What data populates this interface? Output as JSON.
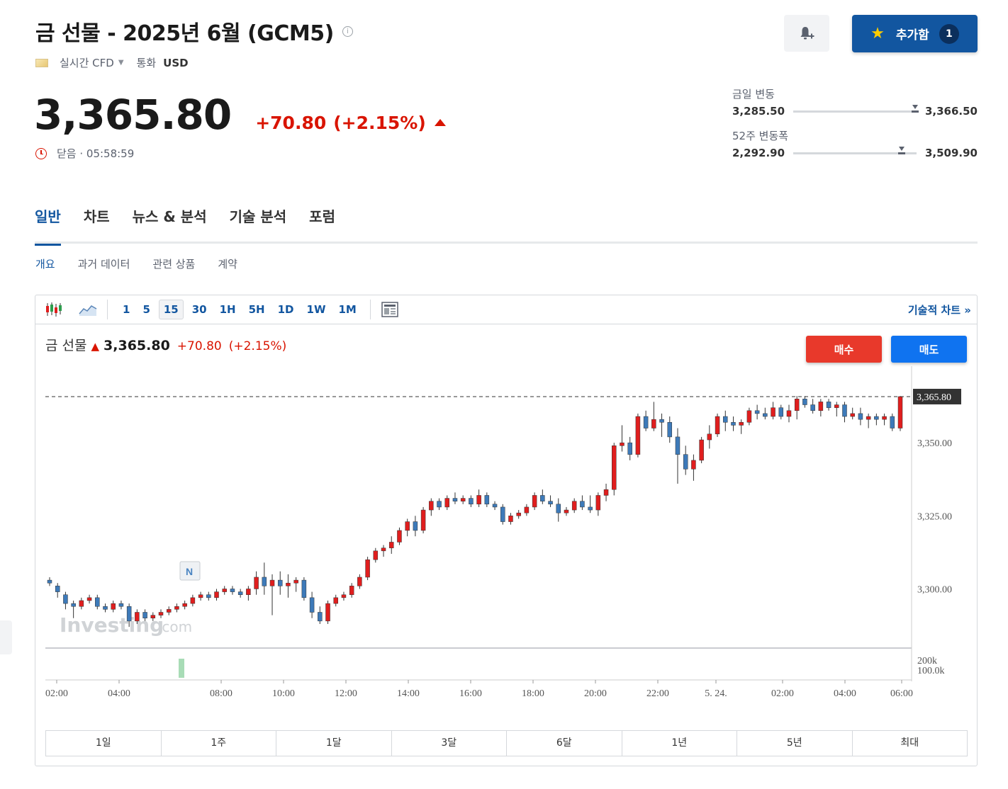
{
  "header": {
    "title": "금 선물 - 2025년 6월 (GCM5)",
    "info_symbol": "i",
    "market_type": "실시간 CFD",
    "currency_label": "통화",
    "currency": "USD"
  },
  "quote": {
    "price": "3,365.80",
    "change": "+70.80",
    "change_pct": "(+2.15%)",
    "status": "닫음 · 05:58:59"
  },
  "actions": {
    "watchlist_label": "추가함",
    "watchlist_count": "1"
  },
  "ranges": {
    "day": {
      "label": "금일 변동",
      "low": "3,285.50",
      "high": "3,366.50",
      "position": 0.99
    },
    "week52": {
      "label": "52주 변동폭",
      "low": "2,292.90",
      "high": "3,509.90",
      "position": 0.88
    }
  },
  "tabs": [
    {
      "label": "일반",
      "active": true
    },
    {
      "label": "차트",
      "active": false
    },
    {
      "label": "뉴스 & 분석",
      "active": false
    },
    {
      "label": "기술 분석",
      "active": false
    },
    {
      "label": "포럼",
      "active": false
    }
  ],
  "subtabs": [
    {
      "label": "개요",
      "active": true
    },
    {
      "label": "과거 데이터",
      "active": false
    },
    {
      "label": "관련 상품",
      "active": false
    },
    {
      "label": "계약",
      "active": false
    }
  ],
  "toolbar": {
    "timeframes": [
      "1",
      "5",
      "15",
      "30",
      "1H",
      "5H",
      "1D",
      "1W",
      "1M"
    ],
    "active_timeframe": "15",
    "advanced_link": "기술적 차트 »"
  },
  "chart_header": {
    "name": "금 선물",
    "price": "3,365.80",
    "change": "+70.80",
    "change_pct": "(+2.15%)",
    "buy_label": "매수",
    "sell_label": "매도",
    "marker_label": "N",
    "watermark": "Investing",
    "watermark_suffix": ".com"
  },
  "chart_data": {
    "type": "candlestick",
    "interval": "15m",
    "ylim": [
      3280,
      3375
    ],
    "y_ticks": [
      3300,
      3325,
      3350
    ],
    "y_tick_labels": [
      "3,300.00",
      "3,325.00",
      "3,350.00"
    ],
    "last_price": 3365.8,
    "last_price_label": "3,365.80",
    "volume_tick_labels": [
      "200k",
      "100.0k"
    ],
    "x_tick_labels": [
      "02:00",
      "04:00",
      "08:00",
      "10:00",
      "12:00",
      "14:00",
      "16:00",
      "18:00",
      "20:00",
      "22:00",
      "5. 24.",
      "02:00",
      "04:00",
      "06:00"
    ],
    "up_color": "#e01e1e",
    "down_color": "#3d7ab9",
    "candles": [
      [
        3303,
        3304,
        3301,
        3302
      ],
      [
        3301,
        3302,
        3297,
        3299
      ],
      [
        3298,
        3299,
        3293,
        3295
      ],
      [
        3295,
        3296,
        3290,
        3294
      ],
      [
        3294,
        3297,
        3293,
        3296
      ],
      [
        3296,
        3298,
        3295,
        3297
      ],
      [
        3297,
        3298,
        3293,
        3294
      ],
      [
        3294,
        3295,
        3292,
        3293
      ],
      [
        3293,
        3296,
        3292,
        3295
      ],
      [
        3295,
        3296,
        3293,
        3294
      ],
      [
        3294,
        3295,
        3287,
        3289
      ],
      [
        3289,
        3293,
        3288,
        3292
      ],
      [
        3292,
        3293,
        3289,
        3290
      ],
      [
        3290,
        3292,
        3289,
        3291
      ],
      [
        3291,
        3293,
        3290,
        3292
      ],
      [
        3292,
        3294,
        3291,
        3293
      ],
      [
        3293,
        3295,
        3292,
        3294
      ],
      [
        3294,
        3296,
        3293,
        3295
      ],
      [
        3295,
        3298,
        3294,
        3297
      ],
      [
        3297,
        3299,
        3296,
        3298
      ],
      [
        3298,
        3299,
        3296,
        3297
      ],
      [
        3297,
        3300,
        3296,
        3299
      ],
      [
        3299,
        3301,
        3298,
        3300
      ],
      [
        3300,
        3301,
        3298,
        3299
      ],
      [
        3299,
        3300,
        3297,
        3298
      ],
      [
        3298,
        3301,
        3296,
        3300
      ],
      [
        3300,
        3306,
        3298,
        3304
      ],
      [
        3304,
        3309,
        3298,
        3301
      ],
      [
        3301,
        3305,
        3291,
        3303
      ],
      [
        3303,
        3306,
        3298,
        3301
      ],
      [
        3301,
        3305,
        3297,
        3302
      ],
      [
        3302,
        3304,
        3299,
        3303
      ],
      [
        3303,
        3304,
        3296,
        3297
      ],
      [
        3297,
        3299,
        3290,
        3292
      ],
      [
        3292,
        3294,
        3288,
        3289
      ],
      [
        3289,
        3296,
        3288,
        3295
      ],
      [
        3295,
        3298,
        3294,
        3297
      ],
      [
        3297,
        3299,
        3296,
        3298
      ],
      [
        3298,
        3302,
        3297,
        3301
      ],
      [
        3301,
        3305,
        3300,
        3304
      ],
      [
        3304,
        3311,
        3303,
        3310
      ],
      [
        3310,
        3314,
        3309,
        3313
      ],
      [
        3313,
        3315,
        3311,
        3314
      ],
      [
        3314,
        3318,
        3312,
        3316
      ],
      [
        3316,
        3321,
        3315,
        3320
      ],
      [
        3320,
        3324,
        3318,
        3323
      ],
      [
        3323,
        3325,
        3318,
        3320
      ],
      [
        3320,
        3328,
        3319,
        3327
      ],
      [
        3327,
        3331,
        3325,
        3330
      ],
      [
        3330,
        3331,
        3327,
        3328
      ],
      [
        3328,
        3332,
        3327,
        3331
      ],
      [
        3331,
        3333,
        3329,
        3330
      ],
      [
        3330,
        3332,
        3329,
        3331
      ],
      [
        3331,
        3332,
        3328,
        3329
      ],
      [
        3329,
        3334,
        3328,
        3332
      ],
      [
        3332,
        3333,
        3328,
        3329
      ],
      [
        3329,
        3330,
        3327,
        3328
      ],
      [
        3328,
        3329,
        3322,
        3323
      ],
      [
        3323,
        3326,
        3322,
        3325
      ],
      [
        3325,
        3327,
        3324,
        3326
      ],
      [
        3326,
        3329,
        3325,
        3328
      ],
      [
        3328,
        3333,
        3327,
        3332
      ],
      [
        3332,
        3334,
        3329,
        3330
      ],
      [
        3330,
        3332,
        3328,
        3329
      ],
      [
        3329,
        3331,
        3323,
        3326
      ],
      [
        3326,
        3328,
        3325,
        3327
      ],
      [
        3327,
        3331,
        3326,
        3330
      ],
      [
        3330,
        3332,
        3327,
        3328
      ],
      [
        3328,
        3332,
        3326,
        3327
      ],
      [
        3327,
        3333,
        3325,
        3332
      ],
      [
        3332,
        3336,
        3330,
        3334
      ],
      [
        3334,
        3350,
        3332,
        3349
      ],
      [
        3349,
        3356,
        3347,
        3350
      ],
      [
        3350,
        3352,
        3344,
        3346
      ],
      [
        3346,
        3360,
        3345,
        3359
      ],
      [
        3359,
        3361,
        3354,
        3355
      ],
      [
        3355,
        3364,
        3354,
        3358
      ],
      [
        3358,
        3360,
        3352,
        3357
      ],
      [
        3357,
        3359,
        3350,
        3352
      ],
      [
        3352,
        3355,
        3336,
        3346
      ],
      [
        3346,
        3349,
        3339,
        3341
      ],
      [
        3341,
        3346,
        3337,
        3344
      ],
      [
        3344,
        3352,
        3343,
        3351
      ],
      [
        3351,
        3356,
        3348,
        3353
      ],
      [
        3353,
        3360,
        3352,
        3359
      ],
      [
        3359,
        3361,
        3354,
        3357
      ],
      [
        3357,
        3359,
        3354,
        3356
      ],
      [
        3356,
        3358,
        3353,
        3357
      ],
      [
        3357,
        3362,
        3356,
        3361
      ],
      [
        3361,
        3363,
        3358,
        3360
      ],
      [
        3360,
        3362,
        3358,
        3359
      ],
      [
        3359,
        3364,
        3358,
        3362
      ],
      [
        3362,
        3363,
        3358,
        3359
      ],
      [
        3359,
        3363,
        3357,
        3361
      ],
      [
        3361,
        3366,
        3358,
        3365
      ],
      [
        3365,
        3366,
        3362,
        3363
      ],
      [
        3363,
        3365,
        3360,
        3361
      ],
      [
        3361,
        3365,
        3359,
        3364
      ],
      [
        3364,
        3365,
        3361,
        3362
      ],
      [
        3362,
        3364,
        3359,
        3363
      ],
      [
        3363,
        3364,
        3357,
        3359
      ],
      [
        3359,
        3362,
        3358,
        3360
      ],
      [
        3360,
        3362,
        3356,
        3358
      ],
      [
        3358,
        3360,
        3355,
        3359
      ],
      [
        3359,
        3360,
        3356,
        3358
      ],
      [
        3358,
        3360,
        3356,
        3359
      ],
      [
        3359,
        3360,
        3354,
        3355
      ],
      [
        3355,
        3366,
        3354,
        3365.8
      ]
    ]
  }
}
